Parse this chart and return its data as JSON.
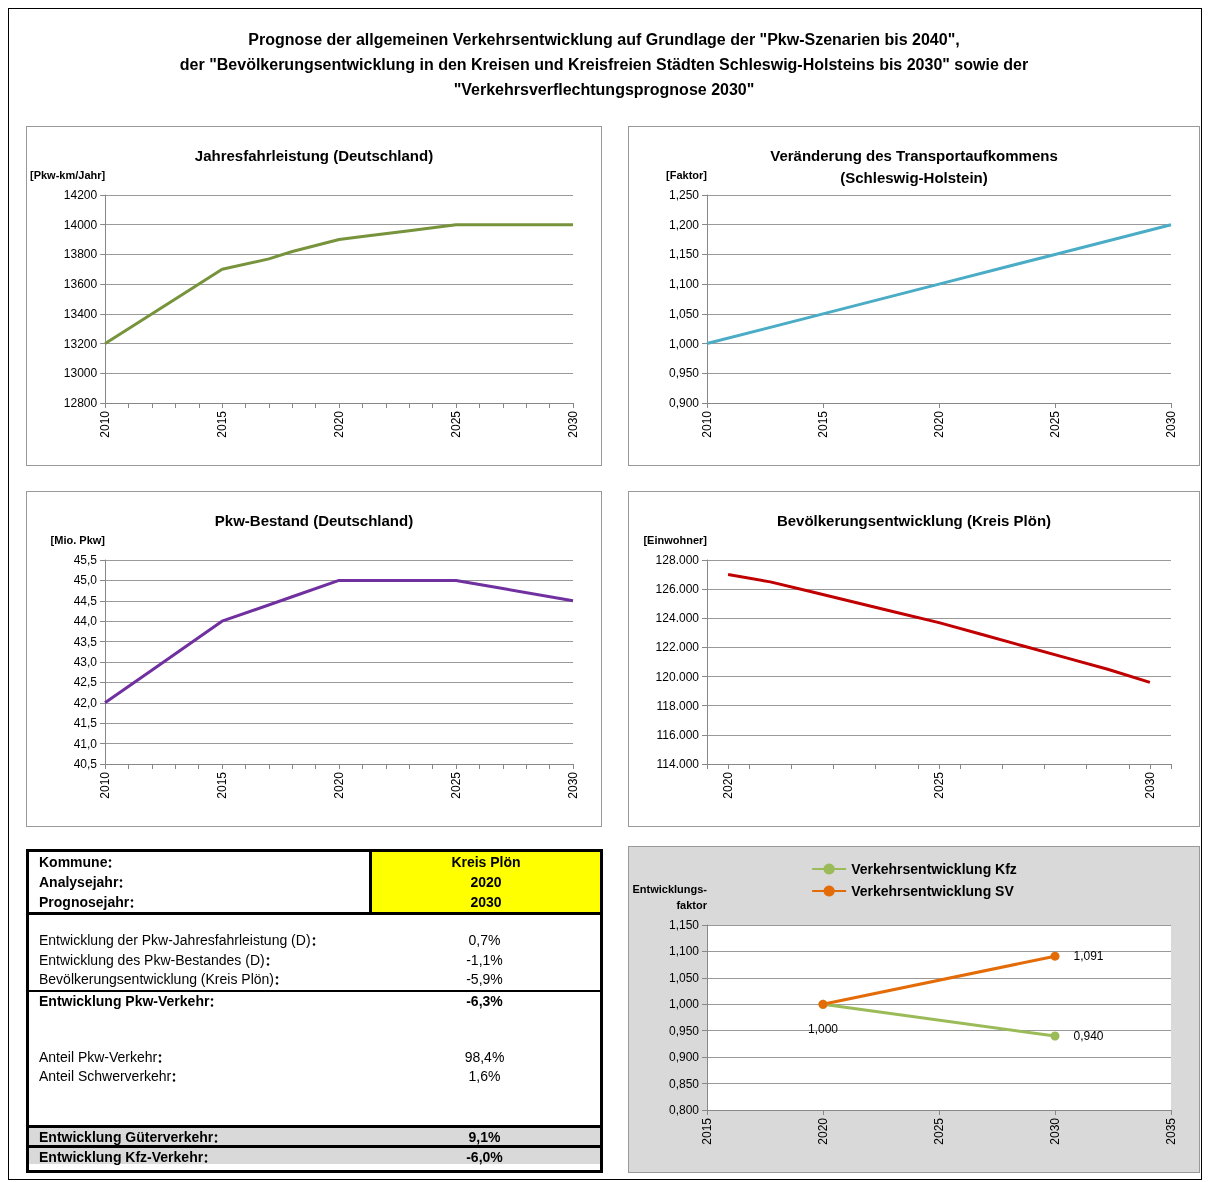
{
  "chart_data": [
    {
      "type": "other",
      "title": "Prognose der allgemeinen Verkehrsentwicklung auf Grundlage der \"Pkw-Szenarien bis 2040\",\nder \"Bevölkerungsentwicklung in den Kreisen und Kreisfreien Städten Schleswig-Holsteins bis 2030\" sowie der\n\"Verkehrsverflechtungsprognose 2030\""
    },
    {
      "type": "line",
      "title": "Jahresfahrleistung (Deutschland)",
      "ylabel": "[Pkw-km/Jahr]",
      "color": "#77933c",
      "grid": "y",
      "x": [
        2010,
        2013,
        2015,
        2017,
        2018,
        2020,
        2021,
        2023,
        2024,
        2025,
        2030
      ],
      "values": [
        13200,
        13500,
        13700,
        13770,
        13820,
        13900,
        13920,
        13960,
        13980,
        14000,
        14000
      ],
      "xlim": [
        2010,
        2030
      ],
      "xticks": [
        2010,
        {
          "value": 2011,
          "label": null
        },
        {
          "value": 2012,
          "label": null
        },
        {
          "value": 2013,
          "label": null
        },
        {
          "value": 2014,
          "label": null
        },
        2015,
        {
          "value": 2016,
          "label": null
        },
        {
          "value": 2017,
          "label": null
        },
        {
          "value": 2018,
          "label": null
        },
        {
          "value": 2019,
          "label": null
        },
        2020,
        {
          "value": 2021,
          "label": null
        },
        {
          "value": 2022,
          "label": null
        },
        {
          "value": 2023,
          "label": null
        },
        {
          "value": 2024,
          "label": null
        },
        2025,
        {
          "value": 2026,
          "label": null
        },
        {
          "value": 2027,
          "label": null
        },
        {
          "value": 2028,
          "label": null
        },
        {
          "value": 2029,
          "label": null
        },
        2030
      ],
      "ylim": [
        12800,
        14200
      ],
      "yticks": [
        12800,
        13000,
        13200,
        13400,
        13600,
        13800,
        14000,
        14200
      ]
    },
    {
      "type": "line",
      "title": "Veränderung des Transportaufkommens\n(Schleswig-Holstein)",
      "ylabel": "[Faktor]",
      "color": "#4bacc6",
      "grid": "y",
      "x": [
        2010,
        2015,
        2020,
        2025,
        2030
      ],
      "values": [
        1.0,
        1.05,
        1.1,
        1.15,
        1.2
      ],
      "xlim": [
        2010,
        2030
      ],
      "xticks": [
        2010,
        2015,
        2020,
        2025,
        2030
      ],
      "ylim": [
        0.9,
        1.25
      ],
      "yticks": [
        {
          "value": 0.9,
          "label": "0,900"
        },
        {
          "value": 0.95,
          "label": "0,950"
        },
        {
          "value": 1.0,
          "label": "1,000"
        },
        {
          "value": 1.05,
          "label": "1,050"
        },
        {
          "value": 1.1,
          "label": "1,100"
        },
        {
          "value": 1.15,
          "label": "1,150"
        },
        {
          "value": 1.2,
          "label": "1,200"
        },
        {
          "value": 1.25,
          "label": "1,250"
        }
      ]
    },
    {
      "type": "line",
      "title": "Pkw-Bestand (Deutschland)",
      "ylabel": "[Mio. Pkw]",
      "color": "#7030a0",
      "grid": "y",
      "x": [
        2010,
        2012,
        2015,
        2018,
        2020,
        2025,
        2027,
        2030
      ],
      "values": [
        42.0,
        42.8,
        44.0,
        44.6,
        45.0,
        45.0,
        44.8,
        44.5
      ],
      "xlim": [
        2010,
        2030
      ],
      "xticks": [
        2010,
        {
          "value": 2011,
          "label": null
        },
        {
          "value": 2012,
          "label": null
        },
        {
          "value": 2013,
          "label": null
        },
        {
          "value": 2014,
          "label": null
        },
        2015,
        {
          "value": 2016,
          "label": null
        },
        {
          "value": 2017,
          "label": null
        },
        {
          "value": 2018,
          "label": null
        },
        {
          "value": 2019,
          "label": null
        },
        2020,
        {
          "value": 2021,
          "label": null
        },
        {
          "value": 2022,
          "label": null
        },
        {
          "value": 2023,
          "label": null
        },
        {
          "value": 2024,
          "label": null
        },
        2025,
        {
          "value": 2026,
          "label": null
        },
        {
          "value": 2027,
          "label": null
        },
        {
          "value": 2028,
          "label": null
        },
        {
          "value": 2029,
          "label": null
        },
        2030
      ],
      "ylim": [
        40.5,
        45.5
      ],
      "yticks": [
        {
          "value": 40.5,
          "label": "40,5"
        },
        {
          "value": 41,
          "label": "41,0"
        },
        {
          "value": 41.5,
          "label": "41,5"
        },
        {
          "value": 42,
          "label": "42,0"
        },
        {
          "value": 42.5,
          "label": "42,5"
        },
        {
          "value": 43,
          "label": "43,0"
        },
        {
          "value": 43.5,
          "label": "43,5"
        },
        {
          "value": 44,
          "label": "44,0"
        },
        {
          "value": 44.5,
          "label": "44,5"
        },
        {
          "value": 45,
          "label": "45,0"
        },
        {
          "value": 45.5,
          "label": "45,5"
        }
      ]
    },
    {
      "type": "line",
      "title": "Bevölkerungsentwicklung (Kreis Plön)",
      "ylabel": "[Einwohner]",
      "color": "#c00000",
      "grid": "y",
      "x": [
        2020,
        2021,
        2022,
        2023,
        2024,
        2025,
        2026,
        2027,
        2028,
        2029,
        2030
      ],
      "values": [
        127000,
        126500,
        125800,
        125100,
        124400,
        123700,
        122900,
        122100,
        121300,
        120500,
        119600
      ],
      "xlim": [
        2019.5,
        2030.5
      ],
      "xticks": [
        {
          "value": 2019.5,
          "label": null
        },
        2020,
        {
          "value": 2020.5,
          "label": null
        },
        {
          "value": 2021.5,
          "label": null
        },
        {
          "value": 2022.5,
          "label": null
        },
        {
          "value": 2023.5,
          "label": null
        },
        {
          "value": 2024.5,
          "label": null
        },
        2025,
        {
          "value": 2025.5,
          "label": null
        },
        {
          "value": 2026.5,
          "label": null
        },
        {
          "value": 2027.5,
          "label": null
        },
        {
          "value": 2028.5,
          "label": null
        },
        {
          "value": 2029.5,
          "label": null
        },
        2030,
        {
          "value": 2030.5,
          "label": null
        }
      ],
      "ylim": [
        114000,
        128000
      ],
      "yticks": [
        {
          "value": 114000,
          "label": "114.000"
        },
        {
          "value": 116000,
          "label": "116.000"
        },
        {
          "value": 118000,
          "label": "118.000"
        },
        {
          "value": 120000,
          "label": "120.000"
        },
        {
          "value": 122000,
          "label": "122.000"
        },
        {
          "value": 124000,
          "label": "124.000"
        },
        {
          "value": 126000,
          "label": "126.000"
        },
        {
          "value": 128000,
          "label": "128.000"
        }
      ]
    },
    {
      "type": "other",
      "categories": [
        "Kommune",
        "Analysejahr",
        "Prognosejahr",
        null,
        "Entwicklung der Pkw-Jahresfahrleistung (D)",
        "Entwicklung des Pkw-Bestandes (D)",
        "Bevölkerungsentwicklung (Kreis Plön)",
        "Entwicklung Pkw-Verkehr",
        null,
        null,
        "Anteil Pkw-Verkehr",
        "Anteil Schwerverkehr",
        null,
        null,
        "Entwicklung Güterverkehr",
        "Entwicklung Kfz-Verkehr"
      ],
      "value_labels": [
        "Kreis Plön",
        "2020",
        "2030",
        null,
        "0,7%",
        "-1,1%",
        "-5,9%",
        "-6,3%",
        null,
        null,
        "98,4%",
        "1,6%",
        null,
        null,
        "9,1%",
        "-6,0%"
      ]
    },
    {
      "type": "line",
      "ylabel": "Entwicklungs-\nfaktor",
      "grid": "y",
      "legend": "top",
      "marker": "circle",
      "series": [
        {
          "name": "Verkehrsentwicklung Kfz",
          "color": "#9bbb59",
          "values": [
            1.0,
            0.94
          ],
          "value_labels": [
            "1,000",
            "0,940"
          ]
        },
        {
          "name": "Verkehrsentwicklung SV",
          "color": "#e36c09",
          "values": [
            1.0,
            1.091
          ],
          "value_labels": [
            null,
            "1,091"
          ]
        }
      ],
      "x": [
        2020,
        2030
      ],
      "xlim": [
        2015,
        2035
      ],
      "xticks": [
        2015,
        2020,
        2025,
        2030,
        2035
      ],
      "ylim": [
        0.8,
        1.15
      ],
      "yticks": [
        {
          "value": 0.8,
          "label": "0,800"
        },
        {
          "value": 0.85,
          "label": "0,850"
        },
        {
          "value": 0.9,
          "label": "0,900"
        },
        {
          "value": 0.95,
          "label": "0,950"
        },
        {
          "value": 1.0,
          "label": "1,000"
        },
        {
          "value": 1.05,
          "label": "1,050"
        },
        {
          "value": 1.1,
          "label": "1,100"
        },
        {
          "value": 1.15,
          "label": "1,150"
        }
      ]
    }
  ]
}
